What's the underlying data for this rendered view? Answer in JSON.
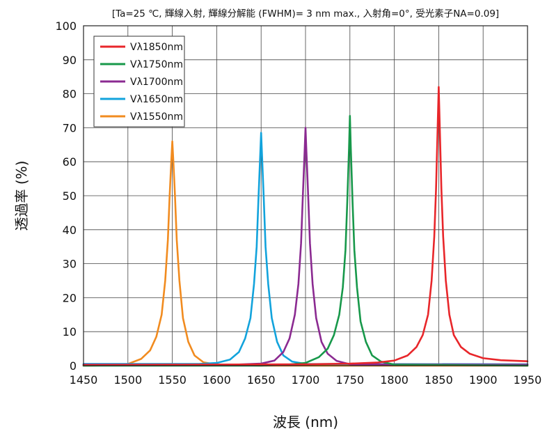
{
  "chart_data": {
    "type": "line",
    "annotation": "[Ta=25 ℃, 輝線入射, 輝線分解能 (FWHM)= 3 nm max., 入射角=0°, 受光素子NA=0.09]",
    "xlabel": "波長 (nm)",
    "ylabel": "透過率 (%)",
    "xlim": [
      1450,
      1950
    ],
    "ylim": [
      0,
      100
    ],
    "x_ticks": [
      1450,
      1500,
      1550,
      1600,
      1650,
      1700,
      1750,
      1800,
      1850,
      1900,
      1950
    ],
    "y_ticks": [
      0,
      10,
      20,
      30,
      40,
      50,
      60,
      70,
      80,
      90,
      100
    ],
    "grid": true,
    "legend_position": "top-left",
    "series": [
      {
        "name": "Vλ1850nm",
        "color": "#e8262a",
        "x": [
          1450,
          1700,
          1750,
          1780,
          1800,
          1815,
          1825,
          1832,
          1838,
          1842,
          1845,
          1847,
          1849,
          1850,
          1851,
          1853,
          1855,
          1858,
          1862,
          1867,
          1875,
          1885,
          1900,
          1920,
          1950
        ],
        "y": [
          0.2,
          0.4,
          0.6,
          0.9,
          1.5,
          3,
          5.5,
          9,
          15,
          25,
          38,
          52,
          72,
          82,
          72,
          52,
          38,
          25,
          15,
          9,
          5.5,
          3.5,
          2.2,
          1.6,
          1.3
        ]
      },
      {
        "name": "Vλ1750nm",
        "color": "#17984a",
        "x": [
          1450,
          1650,
          1680,
          1700,
          1715,
          1725,
          1732,
          1738,
          1742,
          1745,
          1747,
          1749,
          1750,
          1751,
          1753,
          1755,
          1758,
          1762,
          1768,
          1775,
          1785,
          1800,
          1950
        ],
        "y": [
          0,
          0,
          0.3,
          0.8,
          2.5,
          5,
          9,
          15,
          23,
          34,
          48,
          64,
          73.5,
          64,
          48,
          34,
          23,
          13,
          7,
          3,
          1.2,
          0.3,
          0
        ]
      },
      {
        "name": "Vλ1700nm",
        "color": "#8b2a91",
        "x": [
          1450,
          1620,
          1650,
          1665,
          1675,
          1682,
          1688,
          1692,
          1695,
          1697,
          1699,
          1700,
          1701,
          1703,
          1705,
          1708,
          1712,
          1718,
          1725,
          1735,
          1750,
          1950
        ],
        "y": [
          0.3,
          0.3,
          0.6,
          1.5,
          4,
          8,
          15,
          24,
          36,
          50,
          63,
          70,
          63,
          50,
          36,
          24,
          14,
          7,
          3.5,
          1.4,
          0.4,
          0.3
        ]
      },
      {
        "name": "Vλ1650nm",
        "color": "#12a3dc",
        "x": [
          1450,
          1580,
          1600,
          1615,
          1625,
          1632,
          1638,
          1642,
          1645,
          1647,
          1649,
          1650,
          1651,
          1653,
          1655,
          1658,
          1662,
          1668,
          1675,
          1685,
          1700,
          1950
        ],
        "y": [
          0.5,
          0.5,
          0.8,
          1.8,
          4,
          8,
          14,
          24,
          35,
          49,
          62,
          68.5,
          62,
          49,
          35,
          24,
          14,
          7,
          3,
          1.2,
          0.5,
          0.4
        ]
      },
      {
        "name": "Vλ1550nm",
        "color": "#f18b1f",
        "x": [
          1450,
          1480,
          1500,
          1515,
          1525,
          1532,
          1538,
          1542,
          1545,
          1547,
          1549,
          1550,
          1551,
          1553,
          1555,
          1558,
          1562,
          1568,
          1575,
          1585,
          1600,
          1650,
          1950
        ],
        "y": [
          0,
          0.1,
          0.5,
          2,
          4.5,
          8.5,
          15,
          25,
          37,
          50,
          61,
          66,
          61,
          50,
          37,
          25,
          14,
          7,
          3,
          1,
          0.3,
          0,
          0
        ]
      }
    ]
  }
}
